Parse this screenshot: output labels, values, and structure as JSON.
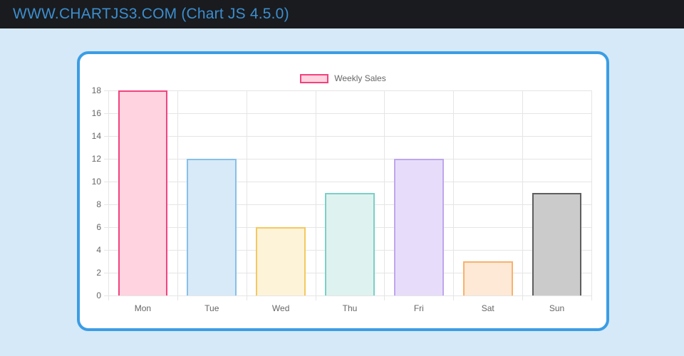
{
  "header": {
    "title": "WWW.CHARTJS3.COM (Chart JS 4.5.0)"
  },
  "colors": {
    "page_bg": "#d6e9f8",
    "header_bg": "#191b1e",
    "header_text": "#3d8ecf",
    "card_bg": "#ffffff",
    "card_border": "#3b9de4",
    "grid": "#e5e5e5",
    "axis_text": "#666666"
  },
  "chart_data": {
    "type": "bar",
    "title": "",
    "legend": {
      "label": "Weekly Sales",
      "position": "top",
      "fill": "#ffd3e0",
      "border": "#f0437f"
    },
    "categories": [
      "Mon",
      "Tue",
      "Wed",
      "Thu",
      "Fri",
      "Sat",
      "Sun"
    ],
    "series": [
      {
        "name": "Weekly Sales",
        "values": [
          18,
          12,
          6,
          9,
          12,
          3,
          9
        ]
      }
    ],
    "bar_styles": [
      {
        "fill": "#ffd3e0",
        "border": "#f0437f"
      },
      {
        "fill": "#d8eaf8",
        "border": "#88c0e8"
      },
      {
        "fill": "#fdf3d8",
        "border": "#f5c860"
      },
      {
        "fill": "#def2ef",
        "border": "#7ad0c6"
      },
      {
        "fill": "#e7ddfa",
        "border": "#bfa6ec"
      },
      {
        "fill": "#fde9d6",
        "border": "#f9b16d"
      },
      {
        "fill": "#cbcbcb",
        "border": "#5e5e5e"
      }
    ],
    "ylim": [
      0,
      18
    ],
    "ytick_step": 2,
    "y_ticks": [
      0,
      2,
      4,
      6,
      8,
      10,
      12,
      14,
      16,
      18
    ],
    "grid": true,
    "bar_width_fraction": 0.72
  }
}
